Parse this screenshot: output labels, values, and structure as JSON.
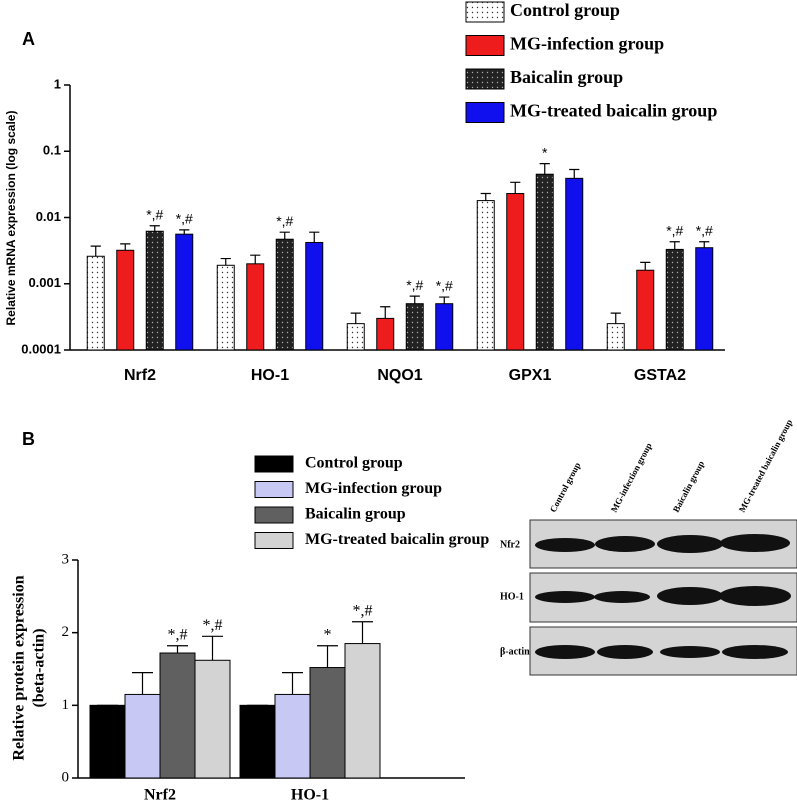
{
  "chart_data": [
    {
      "type": "bar",
      "panel_label": "A",
      "ylabel": "Relative mRNA expression  (log scale)",
      "log_scale": true,
      "ylim": [
        0.0001,
        1
      ],
      "yticks": [
        0.0001,
        0.001,
        0.01,
        0.1,
        1
      ],
      "legend": "top-right",
      "categories": [
        "Nrf2",
        "HO-1",
        "NQO1",
        "GPX1",
        "GSTA2"
      ],
      "series": [
        {
          "name": "Control group",
          "color": "#ffffff",
          "pattern": "dots",
          "values": [
            0.0026,
            0.0019,
            0.00025,
            0.018,
            0.00025
          ],
          "errors": [
            0.0011,
            0.0005,
            0.00011,
            0.005,
            0.00011
          ],
          "annotations": [
            null,
            null,
            null,
            null,
            null
          ]
        },
        {
          "name": "MG-infection group",
          "color": "#ee1c1c",
          "values": [
            0.0032,
            0.002,
            0.0003,
            0.023,
            0.0016
          ],
          "errors": [
            0.0008,
            0.0007,
            0.00015,
            0.011,
            0.0005
          ],
          "annotations": [
            null,
            null,
            null,
            null,
            null
          ]
        },
        {
          "name": "Baicalin group",
          "color": "#222222",
          "pattern": "dots",
          "values": [
            0.0062,
            0.0047,
            0.0005,
            0.045,
            0.0033
          ],
          "errors": [
            0.0013,
            0.0013,
            0.00015,
            0.02,
            0.001
          ],
          "annotations": [
            "*,#",
            "*,#",
            "*,#",
            "*",
            "*,#"
          ]
        },
        {
          "name": "MG-treated baicalin group",
          "color": "#1010ee",
          "values": [
            0.0056,
            0.0042,
            0.0005,
            0.039,
            0.0035
          ],
          "errors": [
            0.0009,
            0.0018,
            0.00013,
            0.014,
            0.0008
          ],
          "annotations": [
            "*,#",
            null,
            "*,#",
            null,
            "*,#"
          ]
        }
      ]
    },
    {
      "type": "bar",
      "panel_label": "B",
      "ylabel": [
        "Relative protein expression",
        "(beta-actin)"
      ],
      "log_scale": false,
      "ylim": [
        0,
        3
      ],
      "yticks": [
        0,
        1,
        2,
        3
      ],
      "legend": "top",
      "categories": [
        "Nrf2",
        "HO-1"
      ],
      "series": [
        {
          "name": "Control group",
          "color": "#000000",
          "values": [
            1,
            1
          ],
          "errors": [
            0,
            0
          ],
          "annotations": [
            null,
            null
          ]
        },
        {
          "name": "MG-infection group",
          "color": "#c8c8f5",
          "values": [
            1.15,
            1.15
          ],
          "errors": [
            0.3,
            0.3
          ],
          "annotations": [
            null,
            null
          ]
        },
        {
          "name": "Baicalin group",
          "color": "#606060",
          "values": [
            1.72,
            1.52
          ],
          "errors": [
            0.1,
            0.3
          ],
          "annotations": [
            "*,#",
            "*"
          ]
        },
        {
          "name": "MG-treated baicalin group",
          "color": "#d3d3d3",
          "values": [
            1.62,
            1.85
          ],
          "errors": [
            0.33,
            0.3
          ],
          "annotations": [
            "*,#",
            "*,#"
          ]
        }
      ]
    }
  ],
  "blot": {
    "lanes": [
      "Control group",
      "MG-infection group",
      "Baicalin group",
      "MG-treated baicalin group"
    ],
    "rows": [
      "Nfr2",
      "HO-1",
      "β-actin"
    ]
  }
}
